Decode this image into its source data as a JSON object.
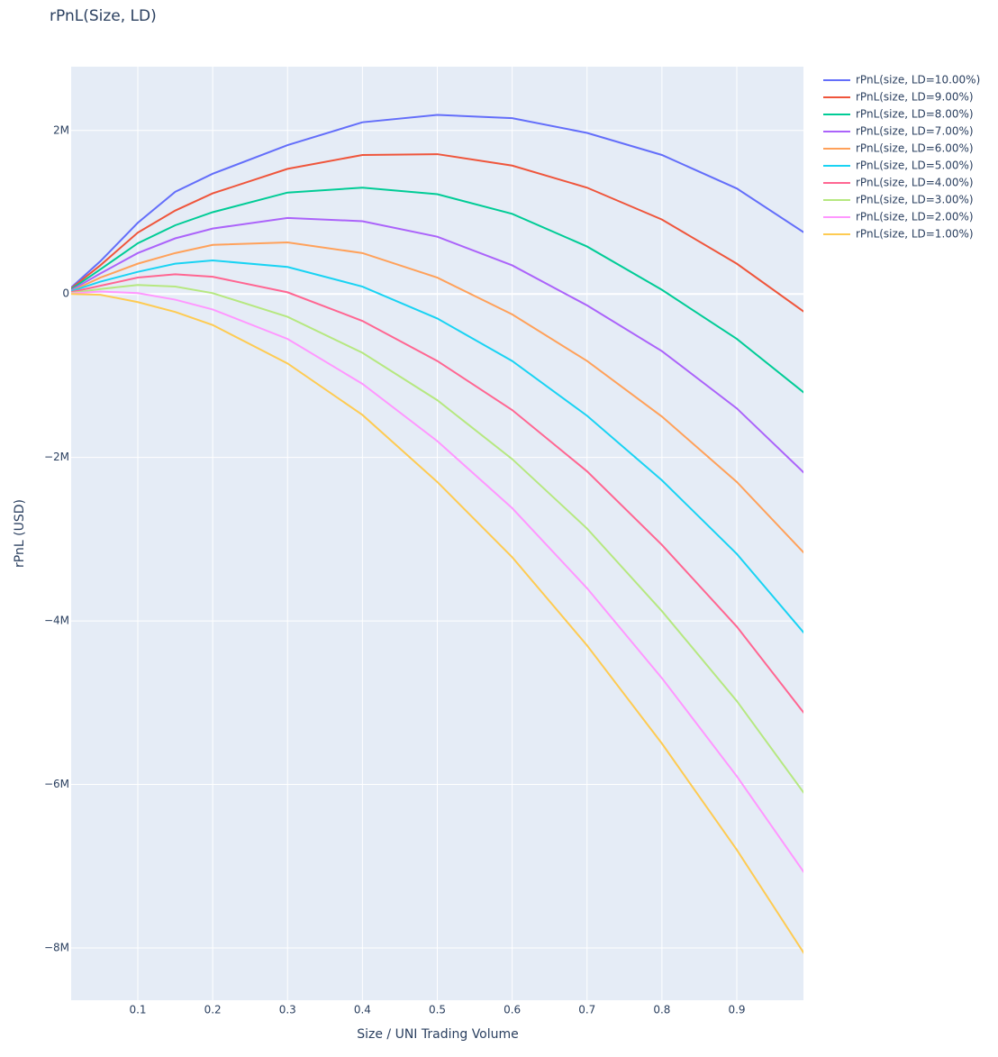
{
  "chart_data": {
    "type": "line",
    "title": "rPnL(Size, LD)",
    "x_label": "Size / UNI Trading Volume",
    "y_label": "rPnL (USD)",
    "x": [
      0.01,
      0.05,
      0.1,
      0.15,
      0.2,
      0.3,
      0.4,
      0.5,
      0.6,
      0.7,
      0.8,
      0.9,
      0.99
    ],
    "xlim": [
      0.011,
      0.989
    ],
    "xticks": [
      0.1,
      0.2,
      0.3,
      0.4,
      0.5,
      0.6,
      0.7,
      0.8,
      0.9
    ],
    "ylim": [
      -8640000,
      2780000
    ],
    "yticks": [
      {
        "value": -8000000,
        "label": "−8M"
      },
      {
        "value": -6000000,
        "label": "−6M"
      },
      {
        "value": -4000000,
        "label": "−4M"
      },
      {
        "value": -2000000,
        "label": "−2M"
      },
      0,
      {
        "value": 2000000,
        "label": "2M"
      }
    ],
    "grid": true,
    "legend": "outside-right",
    "series": [
      {
        "name": "rPnL(size, LD=10.00%)",
        "color": "#636efa",
        "values": [
          70000,
          400000,
          870000,
          1250000,
          1470000,
          1820000,
          2100000,
          2190000,
          2150000,
          1970000,
          1700000,
          1290000,
          750000
        ]
      },
      {
        "name": "rPnL(size, LD=9.00%)",
        "color": "#ef553b",
        "values": [
          60000,
          350000,
          750000,
          1020000,
          1230000,
          1530000,
          1700000,
          1710000,
          1570000,
          1300000,
          910000,
          370000,
          -220000
        ]
      },
      {
        "name": "rPnL(size, LD=8.00%)",
        "color": "#00cc96",
        "values": [
          50000,
          300000,
          620000,
          840000,
          1000000,
          1240000,
          1300000,
          1220000,
          980000,
          580000,
          50000,
          -550000,
          -1210000
        ]
      },
      {
        "name": "rPnL(size, LD=7.00%)",
        "color": "#ab63fa",
        "values": [
          40000,
          250000,
          500000,
          680000,
          800000,
          930000,
          890000,
          700000,
          350000,
          -140000,
          -700000,
          -1400000,
          -2190000
        ]
      },
      {
        "name": "rPnL(size, LD=6.00%)",
        "color": "#ffa15a",
        "values": [
          30000,
          200000,
          370000,
          500000,
          600000,
          630000,
          500000,
          200000,
          -250000,
          -820000,
          -1500000,
          -2300000,
          -3170000
        ]
      },
      {
        "name": "rPnL(size, LD=5.00%)",
        "color": "#19d3f3",
        "values": [
          30000,
          150000,
          270000,
          370000,
          410000,
          330000,
          90000,
          -300000,
          -820000,
          -1490000,
          -2280000,
          -3180000,
          -4150000
        ]
      },
      {
        "name": "rPnL(size, LD=4.00%)",
        "color": "#ff6692",
        "values": [
          20000,
          100000,
          200000,
          240000,
          210000,
          20000,
          -330000,
          -820000,
          -1420000,
          -2170000,
          -3070000,
          -4070000,
          -5130000
        ]
      },
      {
        "name": "rPnL(size, LD=3.00%)",
        "color": "#b6e880",
        "values": [
          10000,
          60000,
          110000,
          90000,
          10000,
          -280000,
          -720000,
          -1300000,
          -2020000,
          -2870000,
          -3880000,
          -4980000,
          -6110000
        ]
      },
      {
        "name": "rPnL(size, LD=2.00%)",
        "color": "#ff97ff",
        "values": [
          5000,
          30000,
          10000,
          -70000,
          -190000,
          -550000,
          -1100000,
          -1800000,
          -2620000,
          -3600000,
          -4700000,
          -5900000,
          -7080000
        ]
      },
      {
        "name": "rPnL(size, LD=1.00%)",
        "color": "#fecb52",
        "values": [
          0,
          -10000,
          -100000,
          -220000,
          -380000,
          -850000,
          -1480000,
          -2300000,
          -3220000,
          -4300000,
          -5500000,
          -6800000,
          -8070000
        ]
      }
    ]
  }
}
